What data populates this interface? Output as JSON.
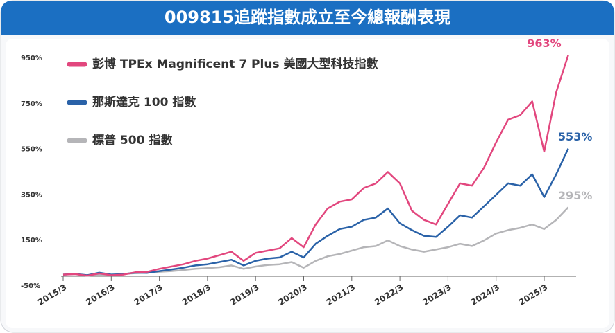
{
  "chart_data": {
    "type": "line",
    "title": "009815追蹤指數成立至今總報酬表現",
    "x": [
      "2015/3",
      "2015/6",
      "2015/9",
      "2015/12",
      "2016/3",
      "2016/6",
      "2016/9",
      "2016/12",
      "2017/3",
      "2017/6",
      "2017/9",
      "2017/12",
      "2018/3",
      "2018/6",
      "2018/9",
      "2018/12",
      "2019/3",
      "2019/6",
      "2019/9",
      "2019/12",
      "2020/3",
      "2020/6",
      "2020/9",
      "2020/12",
      "2021/3",
      "2021/6",
      "2021/9",
      "2021/12",
      "2022/3",
      "2022/6",
      "2022/9",
      "2022/12",
      "2023/3",
      "2023/6",
      "2023/9",
      "2023/12",
      "2024/3",
      "2024/6",
      "2024/9",
      "2024/12",
      "2025/3",
      "2025/6",
      "2025/9"
    ],
    "series": [
      {
        "name": "彭博 TPEx Magnificent 7 Plus 美國大型科技指數",
        "color": "#e2477e",
        "end_label": "963%",
        "values": [
          0,
          2,
          -5,
          5,
          -3,
          0,
          10,
          12,
          25,
          35,
          45,
          60,
          70,
          85,
          100,
          60,
          95,
          105,
          115,
          160,
          120,
          220,
          290,
          320,
          330,
          380,
          400,
          450,
          400,
          280,
          240,
          220,
          310,
          400,
          390,
          470,
          580,
          680,
          700,
          760,
          540,
          800,
          963
        ]
      },
      {
        "name": "那斯達克 100 指數",
        "color": "#2a62a8",
        "end_label": "553%",
        "values": [
          0,
          3,
          -3,
          8,
          0,
          2,
          8,
          7,
          15,
          22,
          30,
          40,
          45,
          55,
          65,
          40,
          60,
          70,
          75,
          100,
          75,
          135,
          170,
          200,
          210,
          240,
          250,
          290,
          225,
          195,
          170,
          165,
          210,
          260,
          250,
          300,
          350,
          400,
          390,
          440,
          340,
          440,
          553
        ]
      },
      {
        "name": "標普 500 指數",
        "color": "#b5b5b8",
        "end_label": "295%",
        "values": [
          0,
          2,
          -5,
          0,
          -2,
          3,
          6,
          8,
          12,
          15,
          20,
          25,
          28,
          32,
          40,
          25,
          35,
          42,
          45,
          55,
          30,
          60,
          80,
          90,
          105,
          120,
          125,
          150,
          125,
          110,
          100,
          110,
          120,
          135,
          125,
          150,
          180,
          195,
          205,
          220,
          200,
          240,
          295
        ]
      }
    ],
    "ylim": [
      -50,
      1000
    ],
    "yticks": [
      {
        "value": -50,
        "label": "-50%"
      },
      {
        "value": 150,
        "label": "150%"
      },
      {
        "value": 350,
        "label": "350%"
      },
      {
        "value": 550,
        "label": "550%"
      },
      {
        "value": 750,
        "label": "750%"
      },
      {
        "value": 950,
        "label": "950%"
      }
    ],
    "xticks": [
      "2015/3",
      "2016/3",
      "2017/3",
      "2018/3",
      "2019/3",
      "2020/3",
      "2021/3",
      "2022/3",
      "2023/3",
      "2024/3",
      "2025/3"
    ]
  }
}
